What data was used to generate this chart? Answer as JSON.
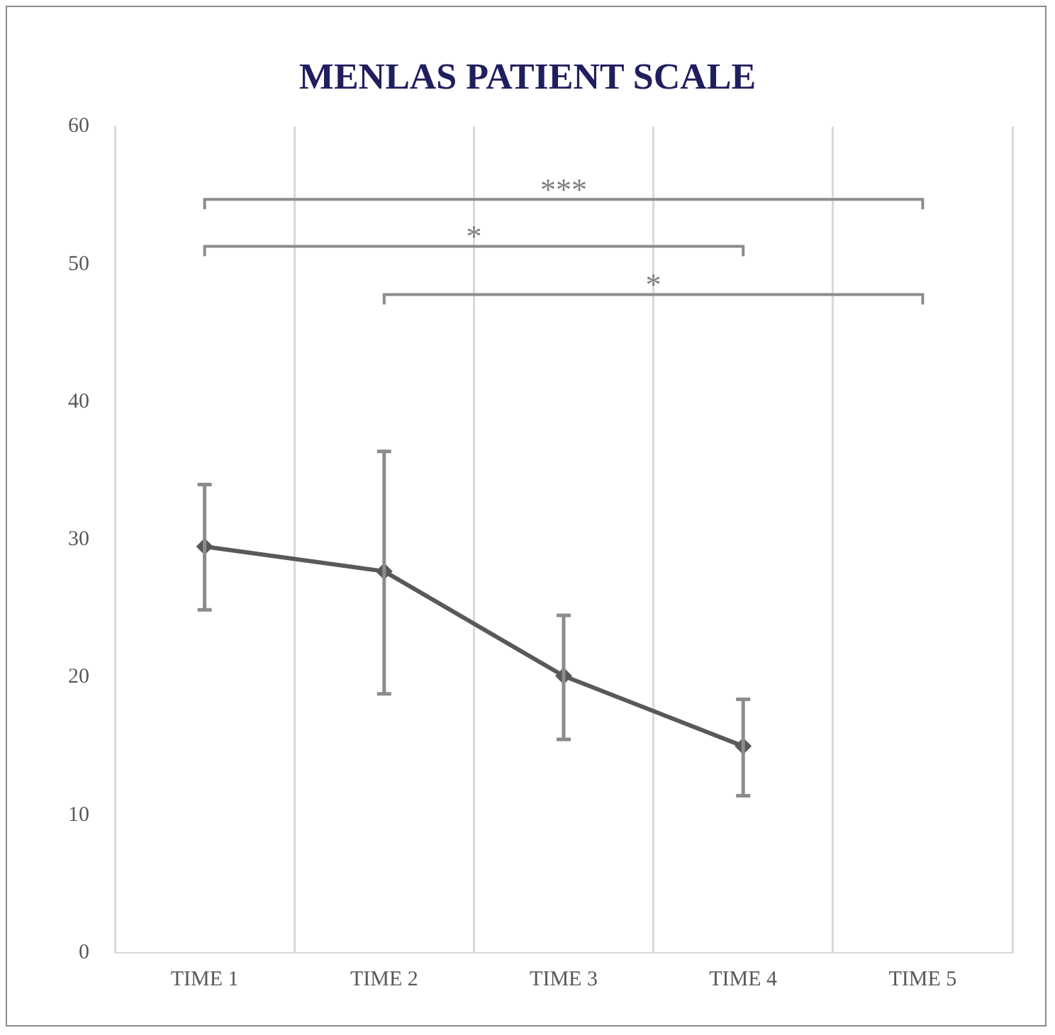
{
  "chart_data": {
    "type": "line",
    "title": "MENLAS PATIENT SCALE",
    "categories": [
      "TIME 1",
      "TIME 2",
      "TIME 3",
      "TIME 4",
      "TIME 5"
    ],
    "series": [
      {
        "color": "#595959",
        "values": [
          29.5,
          27.7,
          20.1,
          15.0,
          null
        ],
        "errors": [
          [
            24.9,
            34.0
          ],
          [
            18.8,
            36.4
          ],
          [
            15.5,
            24.5
          ],
          [
            11.4,
            18.4
          ],
          null
        ]
      }
    ],
    "ylim": [
      0,
      60
    ],
    "yticks": [
      0,
      10,
      20,
      30,
      40,
      50,
      60
    ],
    "grid": "x",
    "legend": false,
    "marker": "diamond",
    "line_style": "solid",
    "annotations": [
      "***",
      "*",
      "*"
    ]
  }
}
